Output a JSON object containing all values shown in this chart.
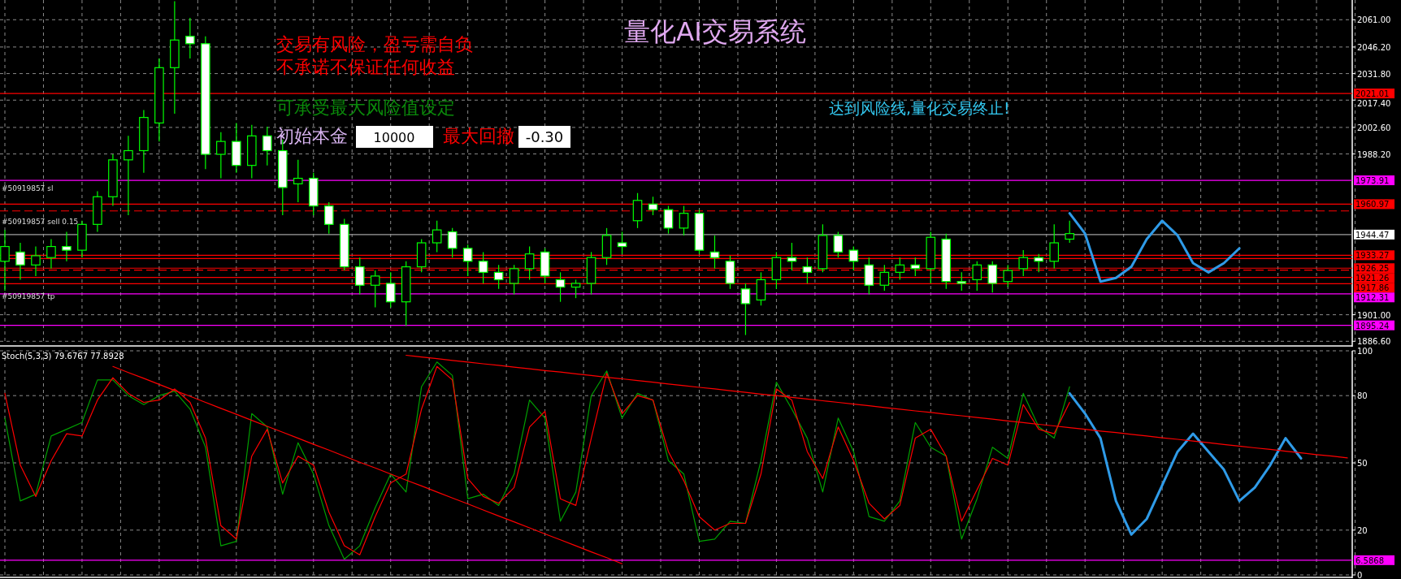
{
  "chart_data": [
    {
      "type": "candlestick",
      "title": "量化AI交易系统",
      "color": "#00ff00",
      "grid": true,
      "categories": [
        null,
        null,
        null,
        null,
        null,
        null,
        null,
        null,
        null,
        null,
        null,
        null,
        null,
        null,
        null,
        null,
        null,
        null,
        null,
        null,
        null,
        null,
        null,
        null,
        null,
        null,
        null,
        null,
        null,
        null,
        null,
        null,
        null,
        null,
        null,
        null,
        null,
        null,
        null,
        null,
        null,
        null,
        null,
        null,
        null,
        null,
        null,
        null,
        null,
        null,
        null,
        null,
        null,
        null,
        null,
        null,
        null,
        null,
        null,
        null,
        null,
        null,
        null,
        null,
        null,
        null,
        null,
        null,
        null,
        null,
        null,
        null,
        null,
        null,
        null,
        null,
        null,
        null,
        null,
        null,
        null,
        null,
        null,
        null,
        null,
        null,
        null,
        null
      ],
      "ohlc": [
        [
          1930,
          1947,
          1914,
          1938
        ],
        [
          1935,
          1940,
          1920,
          1928
        ],
        [
          1928,
          1938,
          1922,
          1933
        ],
        [
          1932,
          1942,
          1926,
          1938
        ],
        [
          1938,
          1946,
          1930,
          1936
        ],
        [
          1936,
          1952,
          1932,
          1950
        ],
        [
          1950,
          1968,
          1946,
          1965
        ],
        [
          1965,
          1988,
          1960,
          1985
        ],
        [
          1985,
          1998,
          1955,
          1990
        ],
        [
          1990,
          2012,
          1978,
          2008
        ],
        [
          2005,
          2040,
          1995,
          2035
        ],
        [
          2035,
          2071,
          2010,
          2050
        ],
        [
          2052,
          2062,
          2040,
          2048
        ],
        [
          2048,
          2052,
          1980,
          1988
        ],
        [
          1988,
          2000,
          1975,
          1995
        ],
        [
          1995,
          2005,
          1978,
          1982
        ],
        [
          1982,
          2004,
          1975,
          1998
        ],
        [
          1998,
          2003,
          1982,
          1990
        ],
        [
          1990,
          1996,
          1955,
          1970
        ],
        [
          1972,
          1985,
          1962,
          1975
        ],
        [
          1975,
          1978,
          1955,
          1960
        ],
        [
          1960,
          1962,
          1945,
          1950
        ],
        [
          1950,
          1953,
          1925,
          1927
        ],
        [
          1927,
          1932,
          1912,
          1917
        ],
        [
          1917,
          1925,
          1905,
          1922
        ],
        [
          1918,
          1924,
          1905,
          1908
        ],
        [
          1908,
          1930,
          1895,
          1927
        ],
        [
          1927,
          1942,
          1924,
          1940
        ],
        [
          1940,
          1952,
          1935,
          1947
        ],
        [
          1946,
          1948,
          1932,
          1937
        ],
        [
          1937,
          1939,
          1922,
          1930
        ],
        [
          1930,
          1935,
          1918,
          1924
        ],
        [
          1924,
          1928,
          1915,
          1920
        ],
        [
          1918,
          1928,
          1912,
          1926
        ],
        [
          1926,
          1938,
          1920,
          1934
        ],
        [
          1935,
          1937,
          1918,
          1922
        ],
        [
          1920,
          1924,
          1908,
          1916
        ],
        [
          1916,
          1920,
          1910,
          1918
        ],
        [
          1918,
          1935,
          1912,
          1932
        ],
        [
          1932,
          1948,
          1928,
          1944
        ],
        [
          1940,
          1946,
          1934,
          1938
        ],
        [
          1952,
          1967,
          1948,
          1963
        ],
        [
          1961,
          1965,
          1955,
          1958
        ],
        [
          1958,
          1960,
          1945,
          1948
        ],
        [
          1948,
          1960,
          1944,
          1956
        ],
        [
          1956,
          1958,
          1934,
          1936
        ],
        [
          1935,
          1944,
          1926,
          1932
        ],
        [
          1930,
          1933,
          1915,
          1918
        ],
        [
          1915,
          1918,
          1890,
          1907
        ],
        [
          1909,
          1924,
          1906,
          1920
        ],
        [
          1920,
          1935,
          1915,
          1932
        ],
        [
          1932,
          1940,
          1925,
          1930
        ],
        [
          1927,
          1932,
          1918,
          1924
        ],
        [
          1926,
          1950,
          1924,
          1944
        ],
        [
          1944,
          1946,
          1932,
          1935
        ],
        [
          1936,
          1938,
          1925,
          1930
        ],
        [
          1928,
          1932,
          1912,
          1917
        ],
        [
          1917,
          1928,
          1914,
          1924
        ],
        [
          1924,
          1932,
          1920,
          1928
        ],
        [
          1928,
          1932,
          1922,
          1926
        ],
        [
          1926,
          1946,
          1918,
          1943
        ],
        [
          1942,
          1945,
          1915,
          1919
        ],
        [
          1919,
          1924,
          1914,
          1918
        ],
        [
          1920,
          1930,
          1914,
          1928
        ],
        [
          1928,
          1930,
          1913,
          1918
        ],
        [
          1919,
          1928,
          1916,
          1925
        ],
        [
          1926,
          1936,
          1922,
          1932
        ],
        [
          1932,
          1934,
          1924,
          1930
        ],
        [
          1930,
          1950,
          1926,
          1940
        ],
        [
          1942,
          1952,
          1940,
          1945
        ],
        null,
        null,
        null,
        null,
        null,
        null,
        null,
        null,
        null,
        null,
        null,
        null,
        null,
        null,
        null,
        null,
        null,
        null
      ],
      "series": [
        {
          "type": "line",
          "color": "#2f9be8",
          "values": [
            null,
            null,
            null,
            null,
            null,
            null,
            null,
            null,
            null,
            null,
            null,
            null,
            null,
            null,
            null,
            null,
            null,
            null,
            null,
            null,
            null,
            null,
            null,
            null,
            null,
            null,
            null,
            null,
            null,
            null,
            null,
            null,
            null,
            null,
            null,
            null,
            null,
            null,
            null,
            null,
            null,
            null,
            null,
            null,
            null,
            null,
            null,
            null,
            null,
            null,
            null,
            null,
            null,
            null,
            null,
            null,
            null,
            null,
            null,
            null,
            null,
            null,
            null,
            null,
            null,
            null,
            null,
            null,
            null,
            1956,
            1945,
            1919,
            1921,
            1927,
            1942,
            1952,
            1944,
            1929,
            1924,
            1929,
            1937,
            null,
            null,
            null,
            null,
            null,
            null,
            null
          ]
        }
      ],
      "ylim": [
        1885.4,
        2071.7
      ],
      "yticks": [
        {
          "value": 2061,
          "label": "2061.00"
        },
        {
          "value": 2046.2,
          "label": "2046.20"
        },
        {
          "value": 2031.8,
          "label": "2031.80"
        },
        {
          "value": 2017.4,
          "label": "2017.40"
        },
        {
          "value": 2002.6,
          "label": "2002.60"
        },
        {
          "value": 1988.2,
          "label": "1988.20"
        },
        {
          "value": 1901,
          "label": "1901.00"
        },
        {
          "value": 1886.6,
          "label": "1886.60"
        }
      ],
      "ref_lines": [
        {
          "axis": "y",
          "value": 2021.01,
          "label": "2021.01",
          "color": "#ff0000"
        },
        {
          "axis": "y",
          "value": 1973.91,
          "label": "1973.91",
          "color": "#ff00ff"
        },
        {
          "axis": "y",
          "value": 1960.97,
          "label": "1960.97",
          "color": "#ff0000"
        },
        {
          "axis": "y",
          "value": 1957.3,
          "label": null,
          "color": "#ff0000",
          "line_style": "dashed"
        },
        {
          "axis": "y",
          "value": 1944.47,
          "label": "1944.47",
          "color": "#a0a0a0"
        },
        {
          "axis": "y",
          "value": 1933.27,
          "label": "1933.27",
          "color": "#ff0000"
        },
        {
          "axis": "y",
          "value": 1931.5,
          "label": null,
          "color": "#ff0000"
        },
        {
          "axis": "y",
          "value": 1926.25,
          "label": "1926.25",
          "color": "#ff0000"
        },
        {
          "axis": "y",
          "value": 1925.2,
          "label": null,
          "color": "#ff0000",
          "line_style": "dashed"
        },
        {
          "axis": "y",
          "value": 1921.26,
          "label": "1921.26",
          "color": "#ff0000"
        },
        {
          "axis": "y",
          "value": 1917.86,
          "label": "1917.86",
          "color": "#ff0000"
        },
        {
          "axis": "y",
          "value": 1912.31,
          "label": "1912.31",
          "color": "#ff00ff"
        },
        {
          "axis": "y",
          "value": 1895.24,
          "label": "1895.24",
          "color": "#ff00ff"
        }
      ],
      "annotations": [
        "交易有风险，盈亏需自负",
        "不承诺不保证任何收益",
        "可承受最大风险值设定",
        "初始本金",
        "10000",
        "最大回撤",
        "-0.30",
        "达到风险线,量化交易终止!",
        "#50919857 sl",
        "#50919857 sell 0.15",
        "#50919857 tp"
      ]
    },
    {
      "type": "line",
      "title": "Stoch(5,3,3) 79.6767 77.8928",
      "grid": true,
      "categories": [
        null,
        null,
        null,
        null,
        null,
        null,
        null,
        null,
        null,
        null,
        null,
        null,
        null,
        null,
        null,
        null,
        null,
        null,
        null,
        null,
        null,
        null,
        null,
        null,
        null,
        null,
        null,
        null,
        null,
        null,
        null,
        null,
        null,
        null,
        null,
        null,
        null,
        null,
        null,
        null,
        null,
        null,
        null,
        null,
        null,
        null,
        null,
        null,
        null,
        null,
        null,
        null,
        null,
        null,
        null,
        null,
        null,
        null,
        null,
        null,
        null,
        null,
        null,
        null,
        null,
        null,
        null,
        null,
        null,
        null,
        null,
        null,
        null,
        null,
        null,
        null,
        null,
        null,
        null,
        null,
        null,
        null,
        null,
        null,
        null,
        null,
        null,
        null
      ],
      "series": [
        {
          "color": "#00a000",
          "values": [
            70,
            33,
            36,
            62,
            65,
            68,
            87,
            87,
            80,
            76,
            80,
            82,
            74,
            57,
            13,
            15,
            72,
            66,
            36,
            59,
            45,
            22,
            7,
            13,
            30,
            45,
            37,
            84,
            95,
            89,
            34,
            36,
            31,
            45,
            78,
            70,
            24,
            37,
            80,
            91,
            70,
            81,
            78,
            51,
            45,
            15,
            16,
            24,
            23,
            51,
            86,
            74,
            61,
            37,
            70,
            55,
            26,
            24,
            33,
            68,
            57,
            53,
            16,
            34,
            57,
            52,
            81,
            66,
            61,
            84,
            null,
            null,
            null,
            null,
            null,
            null,
            null,
            null,
            null,
            null,
            null,
            null,
            null,
            null,
            null,
            null,
            null,
            null
          ]
        },
        {
          "color": "#ff0000",
          "values": [
            81,
            49,
            35,
            51,
            63,
            62,
            78,
            88,
            81,
            77,
            78,
            83,
            77,
            61,
            22,
            16,
            53,
            65,
            41,
            53,
            49,
            28,
            13,
            9,
            26,
            41,
            45,
            74,
            93,
            87,
            43,
            35,
            32,
            39,
            66,
            73,
            34,
            31,
            61,
            90,
            72,
            80,
            78,
            55,
            42,
            26,
            20,
            23,
            23,
            45,
            83,
            78,
            55,
            43,
            66,
            51,
            32,
            25,
            31,
            61,
            65,
            53,
            24,
            38,
            52,
            49,
            76,
            65,
            63,
            77,
            null,
            null,
            null,
            null,
            null,
            null,
            null,
            null,
            null,
            null,
            null,
            null,
            null,
            null,
            null,
            null,
            null,
            null
          ]
        },
        {
          "color": "#2f9be8",
          "values": [
            null,
            null,
            null,
            null,
            null,
            null,
            null,
            null,
            null,
            null,
            null,
            null,
            null,
            null,
            null,
            null,
            null,
            null,
            null,
            null,
            null,
            null,
            null,
            null,
            null,
            null,
            null,
            null,
            null,
            null,
            null,
            null,
            null,
            null,
            null,
            null,
            null,
            null,
            null,
            null,
            null,
            null,
            null,
            null,
            null,
            null,
            null,
            null,
            null,
            null,
            null,
            null,
            null,
            null,
            null,
            null,
            null,
            null,
            null,
            null,
            null,
            null,
            null,
            null,
            null,
            null,
            null,
            null,
            null,
            81,
            72,
            61,
            33,
            18,
            25,
            40,
            55,
            63,
            55,
            47,
            33,
            39,
            49,
            61,
            52,
            null,
            null,
            null
          ]
        },
        {
          "color": "#ff0000",
          "values": [
            null,
            null,
            null,
            null,
            null,
            null,
            null,
            93,
            90.3,
            87.7,
            85,
            82.3,
            79.7,
            77,
            74.3,
            71.7,
            69,
            66.3,
            63.7,
            61,
            58.3,
            55.7,
            53,
            50.3,
            47.7,
            45,
            42.3,
            39.7,
            37,
            34.3,
            31.7,
            29,
            26.3,
            23.7,
            21,
            18.3,
            15.7,
            13,
            10.3,
            7.7,
            5,
            null,
            null,
            null,
            null,
            null,
            null,
            null,
            null,
            null,
            null,
            null,
            null,
            null,
            null,
            null,
            null,
            null,
            null,
            null,
            null,
            null,
            null,
            null,
            null,
            null,
            null,
            null,
            null,
            null,
            null,
            null,
            null,
            null,
            null,
            null,
            null,
            null,
            null,
            null,
            null,
            null,
            null,
            null,
            null,
            null,
            null,
            null
          ]
        },
        {
          "color": "#ff0000",
          "values": [
            null,
            null,
            null,
            null,
            null,
            null,
            null,
            null,
            null,
            null,
            null,
            null,
            null,
            null,
            null,
            null,
            null,
            null,
            null,
            null,
            null,
            null,
            null,
            null,
            null,
            null,
            98,
            97.2,
            96.5,
            95.7,
            95,
            94.2,
            93.5,
            92.7,
            92,
            91.2,
            90.5,
            89.7,
            89,
            88.2,
            87.5,
            86.7,
            86,
            85.2,
            84.5,
            83.7,
            83,
            82.2,
            81.5,
            80.7,
            80,
            79.2,
            78.5,
            77.7,
            77,
            76.2,
            75.5,
            74.7,
            74,
            73.2,
            72.5,
            71.7,
            71,
            70.2,
            69.5,
            68.7,
            68,
            67.2,
            66.5,
            65.7,
            65,
            64.2,
            63.5,
            62.7,
            62,
            61.2,
            60.5,
            59.7,
            59,
            58.2,
            57.5,
            56.7,
            56,
            55.2,
            54.5,
            53.7,
            53,
            52.2
          ]
        }
      ],
      "ylim": [
        0,
        100
      ],
      "yticks": [
        0,
        20,
        50,
        80,
        100
      ],
      "ref_lines": [
        {
          "axis": "y",
          "value": 6.5868,
          "label": "6.5868",
          "color": "#ff00ff"
        }
      ]
    }
  ]
}
